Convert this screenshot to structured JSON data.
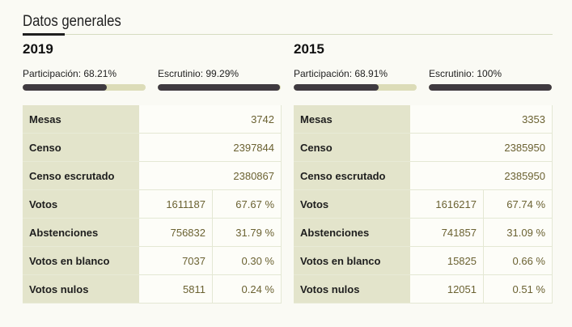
{
  "heading": "Datos generales",
  "panels": [
    {
      "year": "2019",
      "participacion": {
        "label": "Participación: 68.21%",
        "value": 68.21
      },
      "escrutinio": {
        "label": "Escrutinio: 99.29%",
        "value": 99.29
      },
      "rows": {
        "mesas": {
          "label": "Mesas",
          "value": "3742"
        },
        "censo": {
          "label": "Censo",
          "value": "2397844"
        },
        "censo_escrutado": {
          "label": "Censo escrutado",
          "value": "2380867"
        },
        "votos": {
          "label": "Votos",
          "value": "1611187",
          "pct": "67.67 %"
        },
        "abstenciones": {
          "label": "Abstenciones",
          "value": "756832",
          "pct": "31.79 %"
        },
        "blanco": {
          "label": "Votos en blanco",
          "value": "7037",
          "pct": "0.30 %"
        },
        "nulos": {
          "label": "Votos nulos",
          "value": "5811",
          "pct": "0.24 %"
        }
      }
    },
    {
      "year": "2015",
      "participacion": {
        "label": "Participación: 68.91%",
        "value": 68.91
      },
      "escrutinio": {
        "label": "Escrutinio: 100%",
        "value": 100
      },
      "rows": {
        "mesas": {
          "label": "Mesas",
          "value": "3353"
        },
        "censo": {
          "label": "Censo",
          "value": "2385950"
        },
        "censo_escrutado": {
          "label": "Censo escrutado",
          "value": "2385950"
        },
        "votos": {
          "label": "Votos",
          "value": "1616217",
          "pct": "67.74 %"
        },
        "abstenciones": {
          "label": "Abstenciones",
          "value": "741857",
          "pct": "31.09 %"
        },
        "blanco": {
          "label": "Votos en blanco",
          "value": "15825",
          "pct": "0.66 %"
        },
        "nulos": {
          "label": "Votos nulos",
          "value": "12051",
          "pct": "0.51 %"
        }
      }
    }
  ],
  "colors": {
    "bar_fill": "#3f3a40",
    "bar_track": "#dcdcb8",
    "label_cell": "#e3e4cb",
    "number_text": "#6b6232"
  }
}
